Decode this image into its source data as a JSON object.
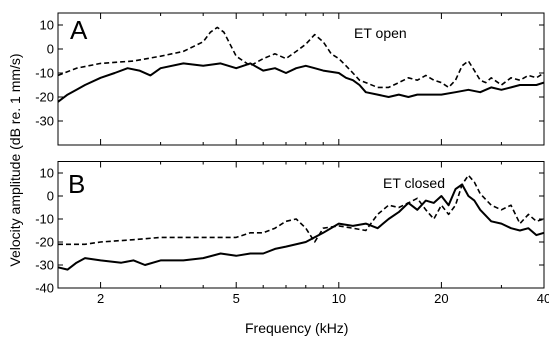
{
  "chart_data": [
    {
      "type": "line",
      "panel_label": "A",
      "annotation": "ET open",
      "xscale": "log",
      "xlim": [
        1.5,
        40
      ],
      "ylim": [
        -40,
        15
      ],
      "x_ticks": [
        2,
        5,
        10,
        20,
        40
      ],
      "x_tick_labels": [],
      "y_ticks": [
        -30,
        -20,
        -10,
        0,
        10
      ],
      "y_tick_labels": [
        "-30",
        "-20",
        "-10",
        "0",
        "10"
      ],
      "series": [
        {
          "line_style": "dashed",
          "x": [
            1.5,
            1.7,
            2.0,
            2.5,
            3.0,
            3.5,
            4.0,
            4.2,
            4.4,
            4.6,
            5.0,
            5.5,
            6.0,
            6.5,
            7.0,
            7.5,
            8.0,
            8.5,
            9.0,
            9.5,
            10.0,
            10.5,
            11.0,
            11.5,
            12.0,
            13.0,
            14.0,
            15.0,
            16.0,
            17.0,
            18.0,
            19.0,
            20.0,
            21.0,
            22.0,
            23.0,
            24.0,
            25.0,
            26.0,
            27.0,
            28.0,
            30.0,
            32.0,
            34.0,
            36.0,
            38.0,
            40.0
          ],
          "y": [
            -11,
            -8,
            -6,
            -5,
            -3,
            -1,
            3,
            7,
            9,
            7,
            -3,
            -7,
            -4,
            -2,
            -4,
            -1,
            2,
            6,
            3,
            -2,
            -4,
            -7,
            -10,
            -13,
            -14,
            -16,
            -16,
            -14,
            -12,
            -13,
            -11,
            -13,
            -14,
            -16,
            -13,
            -7,
            -5,
            -9,
            -13,
            -14,
            -12,
            -15,
            -12,
            -13,
            -11,
            -12,
            -10
          ]
        },
        {
          "line_style": "solid",
          "x": [
            1.5,
            1.6,
            1.7,
            1.8,
            2.0,
            2.2,
            2.4,
            2.6,
            2.8,
            3.0,
            3.5,
            4.0,
            4.5,
            5.0,
            5.5,
            6.0,
            6.5,
            7.0,
            7.5,
            8.0,
            8.5,
            9.0,
            10.0,
            10.5,
            11.0,
            11.5,
            12.0,
            13.0,
            14.0,
            15.0,
            16.0,
            17.0,
            18.0,
            20.0,
            22.0,
            24.0,
            26.0,
            28.0,
            30.0,
            32.0,
            34.0,
            36.0,
            38.0,
            40.0
          ],
          "y": [
            -22,
            -19,
            -17,
            -15,
            -12,
            -10,
            -8,
            -9,
            -11,
            -8,
            -6,
            -7,
            -6,
            -8,
            -6,
            -9,
            -8,
            -10,
            -8,
            -7,
            -8,
            -9,
            -10,
            -12,
            -13,
            -15,
            -18,
            -19,
            -20,
            -19,
            -20,
            -19,
            -19,
            -19,
            -18,
            -17,
            -18,
            -16,
            -17,
            -16,
            -15,
            -15,
            -15,
            -14
          ]
        }
      ]
    },
    {
      "type": "line",
      "panel_label": "B",
      "annotation": "ET closed",
      "xscale": "log",
      "xlim": [
        1.5,
        40
      ],
      "ylim": [
        -40,
        15
      ],
      "x_ticks": [
        2,
        5,
        10,
        20,
        40
      ],
      "x_tick_labels": [
        "2",
        "5",
        "10",
        "20",
        "40"
      ],
      "xlabel": "Frequency (kHz)",
      "y_ticks": [
        -40,
        -30,
        -20,
        -10,
        0,
        10
      ],
      "y_tick_labels": [
        "-40",
        "-30",
        "-20",
        "-10",
        "0",
        "10"
      ],
      "series": [
        {
          "line_style": "dashed",
          "x": [
            1.5,
            1.8,
            2.0,
            2.5,
            3.0,
            4.0,
            5.0,
            5.5,
            6.0,
            6.5,
            7.0,
            7.5,
            8.0,
            8.5,
            9.0,
            10.0,
            11.0,
            12.0,
            13.0,
            14.0,
            15.0,
            16.0,
            17.0,
            18.0,
            19.0,
            20.0,
            21.0,
            22.0,
            23.0,
            24.0,
            25.0,
            26.0,
            28.0,
            30.0,
            32.0,
            34.0,
            36.0,
            38.0,
            40.0
          ],
          "y": [
            -21,
            -21,
            -20,
            -19,
            -18,
            -18,
            -18,
            -16,
            -16,
            -14,
            -11,
            -10,
            -14,
            -20,
            -14,
            -13,
            -14,
            -15,
            -8,
            -4,
            -5,
            -3,
            -1,
            -6,
            -10,
            -4,
            -8,
            -4,
            5,
            9,
            6,
            1,
            -4,
            -6,
            -4,
            -12,
            -8,
            -11,
            -10
          ]
        },
        {
          "line_style": "solid",
          "x": [
            1.5,
            1.6,
            1.7,
            1.8,
            2.0,
            2.3,
            2.5,
            2.7,
            3.0,
            3.5,
            4.0,
            4.5,
            5.0,
            5.5,
            6.0,
            6.5,
            7.0,
            8.0,
            9.0,
            10.0,
            11.0,
            12.0,
            13.0,
            14.0,
            15.0,
            16.0,
            17.0,
            18.0,
            19.0,
            20.0,
            21.0,
            22.0,
            23.0,
            24.0,
            25.0,
            26.0,
            28.0,
            30.0,
            32.0,
            34.0,
            36.0,
            38.0,
            40.0
          ],
          "y": [
            -31,
            -32,
            -29,
            -27,
            -28,
            -29,
            -28,
            -30,
            -28,
            -28,
            -27,
            -25,
            -26,
            -25,
            -25,
            -23,
            -22,
            -20,
            -16,
            -12,
            -13,
            -12,
            -14,
            -10,
            -7,
            -3,
            -6,
            -2,
            -3,
            0,
            -4,
            3,
            5,
            0,
            -2,
            -6,
            -11,
            -12,
            -14,
            -15,
            -14,
            -17,
            -16
          ]
        }
      ]
    }
  ],
  "ylabel": "Velocity amplitude (dB re. 1 mm/s)"
}
